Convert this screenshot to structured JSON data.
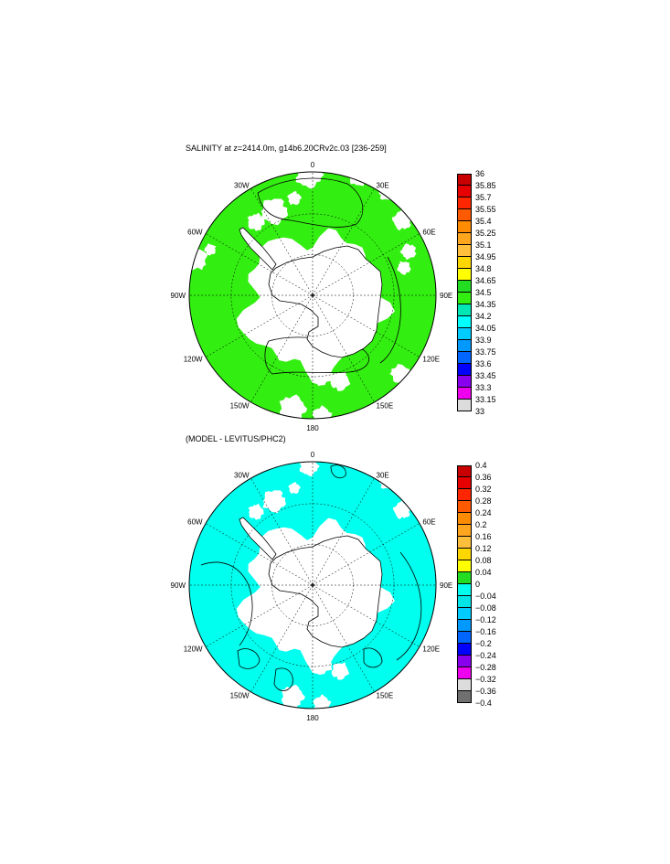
{
  "panels": [
    {
      "id": "salinity",
      "title": "SALINITY at z=2414.0m, g14b6.20CRv2c.03 [236-259]",
      "lon_labels": [
        "0",
        "30E",
        "60E",
        "90E",
        "120E",
        "150E",
        "180",
        "150W",
        "120W",
        "90W",
        "60W",
        "30W"
      ],
      "ocean_color": "#33ee11",
      "contour_color": "#000000",
      "colorbar": {
        "labels": [
          "36",
          "35.85",
          "35.7",
          "35.55",
          "35.4",
          "35.25",
          "35.1",
          "34.95",
          "34.8",
          "34.65",
          "34.5",
          "34.35",
          "34.2",
          "34.05",
          "33.9",
          "33.75",
          "33.6",
          "33.45",
          "33.3",
          "33.15",
          "33"
        ],
        "colors": [
          "#c80000",
          "#e60000",
          "#ff2600",
          "#ff5a00",
          "#ff8c00",
          "#ffa51e",
          "#ffbe3c",
          "#ffd700",
          "#ffff00",
          "#22dd22",
          "#33ee11",
          "#00e6b4",
          "#00ffff",
          "#00ccff",
          "#0099ff",
          "#0066ff",
          "#0000ff",
          "#8800ee",
          "#ee00ee",
          "#dcdcdc"
        ]
      }
    },
    {
      "id": "difference",
      "title": "(MODEL - LEVITUS/PHC2)",
      "lon_labels": [
        "0",
        "30E",
        "60E",
        "90E",
        "120E",
        "150E",
        "180",
        "150W",
        "120W",
        "90W",
        "60W",
        "30W"
      ],
      "ocean_color": "#00ffee",
      "contour_color": "#000000",
      "colorbar": {
        "labels": [
          "0.4",
          "0.36",
          "0.32",
          "0.28",
          "0.24",
          "0.2",
          "0.16",
          "0.12",
          "0.08",
          "0.04",
          "0",
          "−0.04",
          "−0.08",
          "−0.12",
          "−0.16",
          "−0.2",
          "−0.24",
          "−0.28",
          "−0.32",
          "−0.36",
          "−0.4"
        ],
        "colors": [
          "#c80000",
          "#e60000",
          "#ff2600",
          "#ff5a00",
          "#ff8c00",
          "#ffa51e",
          "#ffbe3c",
          "#ffd700",
          "#ffff00",
          "#22dd22",
          "#00ffee",
          "#00e6e6",
          "#00ccff",
          "#0099ff",
          "#0066ff",
          "#0000ff",
          "#8800ee",
          "#ee00ee",
          "#dcdcdc",
          "#707070"
        ]
      }
    }
  ]
}
